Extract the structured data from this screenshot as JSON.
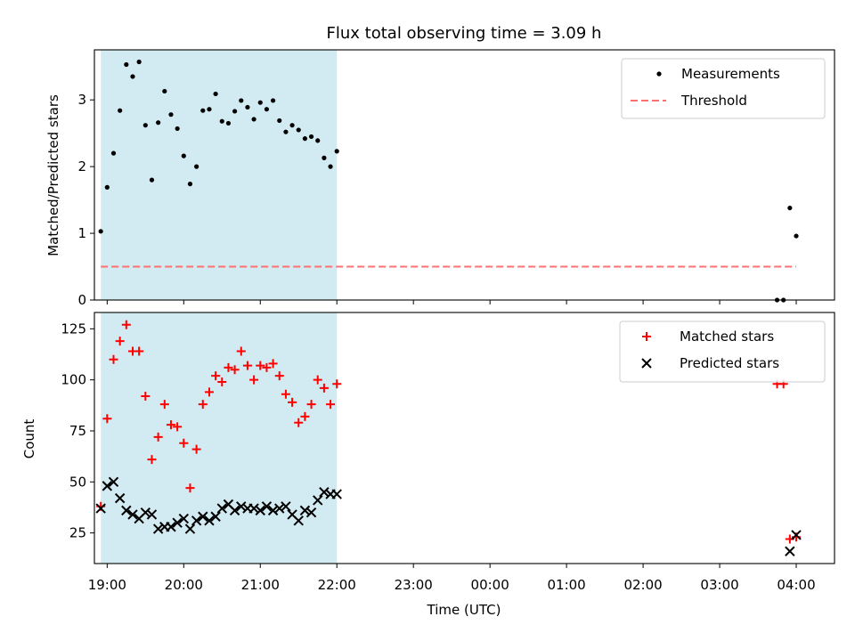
{
  "chart_data": [
    {
      "type": "scatter",
      "title": "Flux total observing time = 3.09 h",
      "xlabel": "",
      "ylabel": "Matched/Predicted stars",
      "ylim": [
        0,
        3.75
      ],
      "yticks": [
        0,
        1,
        2,
        3
      ],
      "xlim": [
        "18:50",
        "04:30"
      ],
      "shaded_interval": [
        "18:55",
        "22:00"
      ],
      "shaded_color": "#add8e6",
      "legend_position": "top-right",
      "grid": false,
      "series": [
        {
          "name": "Measurements",
          "kind": "scatter",
          "marker": "dot",
          "color": "#000000",
          "points": [
            [
              "18:55",
              1.03
            ],
            [
              "19:00",
              1.69
            ],
            [
              "19:05",
              2.2
            ],
            [
              "19:10",
              2.84
            ],
            [
              "19:15",
              3.53
            ],
            [
              "19:20",
              3.35
            ],
            [
              "19:25",
              3.57
            ],
            [
              "19:30",
              2.62
            ],
            [
              "19:35",
              1.8
            ],
            [
              "19:40",
              2.66
            ],
            [
              "19:45",
              3.13
            ],
            [
              "19:50",
              2.78
            ],
            [
              "19:55",
              2.57
            ],
            [
              "20:00",
              2.16
            ],
            [
              "20:05",
              1.74
            ],
            [
              "20:10",
              2.0
            ],
            [
              "20:15",
              2.84
            ],
            [
              "20:20",
              2.86
            ],
            [
              "20:25",
              3.09
            ],
            [
              "20:30",
              2.68
            ],
            [
              "20:35",
              2.65
            ],
            [
              "20:40",
              2.83
            ],
            [
              "20:45",
              2.99
            ],
            [
              "20:50",
              2.89
            ],
            [
              "20:55",
              2.71
            ],
            [
              "21:00",
              2.96
            ],
            [
              "21:05",
              2.86
            ],
            [
              "21:10",
              2.99
            ],
            [
              "21:15",
              2.69
            ],
            [
              "21:20",
              2.52
            ],
            [
              "21:25",
              2.62
            ],
            [
              "21:30",
              2.55
            ],
            [
              "21:35",
              2.42
            ],
            [
              "21:40",
              2.45
            ],
            [
              "21:45",
              2.39
            ],
            [
              "21:50",
              2.13
            ],
            [
              "21:55",
              2.0
            ],
            [
              "22:00",
              2.23
            ],
            [
              "03:45",
              0.0
            ],
            [
              "03:50",
              0.0
            ],
            [
              "03:55",
              1.38
            ],
            [
              "04:00",
              0.96
            ]
          ]
        },
        {
          "name": "Threshold",
          "kind": "line",
          "dash": true,
          "color": "#ff7070",
          "points": [
            [
              "18:55",
              0.5
            ],
            [
              "04:00",
              0.5
            ]
          ]
        }
      ]
    },
    {
      "type": "scatter",
      "title": "",
      "xlabel": "Time (UTC)",
      "ylabel": "Count",
      "ylim": [
        10,
        133
      ],
      "yticks": [
        25,
        50,
        75,
        100,
        125
      ],
      "xlim": [
        "18:50",
        "04:30"
      ],
      "xticks": [
        "19:00",
        "20:00",
        "21:00",
        "22:00",
        "23:00",
        "00:00",
        "01:00",
        "02:00",
        "03:00",
        "04:00"
      ],
      "shaded_interval": [
        "18:55",
        "22:00"
      ],
      "shaded_color": "#add8e6",
      "legend_position": "top-right",
      "grid": false,
      "series": [
        {
          "name": "Matched stars",
          "kind": "scatter",
          "marker": "plus",
          "color": "#ff0000",
          "points": [
            [
              "18:55",
              38
            ],
            [
              "19:00",
              81
            ],
            [
              "19:05",
              110
            ],
            [
              "19:10",
              119
            ],
            [
              "19:15",
              127
            ],
            [
              "19:20",
              114
            ],
            [
              "19:25",
              114
            ],
            [
              "19:30",
              92
            ],
            [
              "19:35",
              61
            ],
            [
              "19:40",
              72
            ],
            [
              "19:45",
              88
            ],
            [
              "19:50",
              78
            ],
            [
              "19:55",
              77
            ],
            [
              "20:00",
              69
            ],
            [
              "20:05",
              47
            ],
            [
              "20:10",
              66
            ],
            [
              "20:15",
              88
            ],
            [
              "20:20",
              94
            ],
            [
              "20:25",
              102
            ],
            [
              "20:30",
              99
            ],
            [
              "20:35",
              106
            ],
            [
              "20:40",
              105
            ],
            [
              "20:45",
              114
            ],
            [
              "20:50",
              107
            ],
            [
              "20:55",
              100
            ],
            [
              "21:00",
              107
            ],
            [
              "21:05",
              106
            ],
            [
              "21:10",
              108
            ],
            [
              "21:15",
              102
            ],
            [
              "21:20",
              93
            ],
            [
              "21:25",
              89
            ],
            [
              "21:30",
              79
            ],
            [
              "21:35",
              82
            ],
            [
              "21:40",
              88
            ],
            [
              "21:45",
              100
            ],
            [
              "21:50",
              96
            ],
            [
              "21:55",
              88
            ],
            [
              "22:00",
              98
            ],
            [
              "03:45",
              98
            ],
            [
              "03:50",
              98
            ],
            [
              "03:55",
              22
            ],
            [
              "04:00",
              23
            ]
          ]
        },
        {
          "name": "Predicted stars",
          "kind": "scatter",
          "marker": "x",
          "color": "#000000",
          "points": [
            [
              "18:55",
              37
            ],
            [
              "19:00",
              48
            ],
            [
              "19:05",
              50
            ],
            [
              "19:10",
              42
            ],
            [
              "19:15",
              36
            ],
            [
              "19:20",
              34
            ],
            [
              "19:25",
              32
            ],
            [
              "19:30",
              35
            ],
            [
              "19:35",
              34
            ],
            [
              "19:40",
              27
            ],
            [
              "19:45",
              28
            ],
            [
              "19:50",
              28
            ],
            [
              "19:55",
              30
            ],
            [
              "20:00",
              32
            ],
            [
              "20:05",
              27
            ],
            [
              "20:10",
              31
            ],
            [
              "20:15",
              33
            ],
            [
              "20:20",
              31
            ],
            [
              "20:25",
              33
            ],
            [
              "20:30",
              37
            ],
            [
              "20:35",
              39
            ],
            [
              "20:40",
              36
            ],
            [
              "20:45",
              38
            ],
            [
              "20:50",
              37
            ],
            [
              "20:55",
              37
            ],
            [
              "21:00",
              36
            ],
            [
              "21:05",
              38
            ],
            [
              "21:10",
              36
            ],
            [
              "21:15",
              37
            ],
            [
              "21:20",
              38
            ],
            [
              "21:25",
              34
            ],
            [
              "21:30",
              31
            ],
            [
              "21:35",
              36
            ],
            [
              "21:40",
              35
            ],
            [
              "21:45",
              41
            ],
            [
              "21:50",
              45
            ],
            [
              "21:55",
              44
            ],
            [
              "22:00",
              44
            ],
            [
              "03:55",
              16
            ],
            [
              "04:00",
              24
            ]
          ]
        }
      ]
    }
  ]
}
